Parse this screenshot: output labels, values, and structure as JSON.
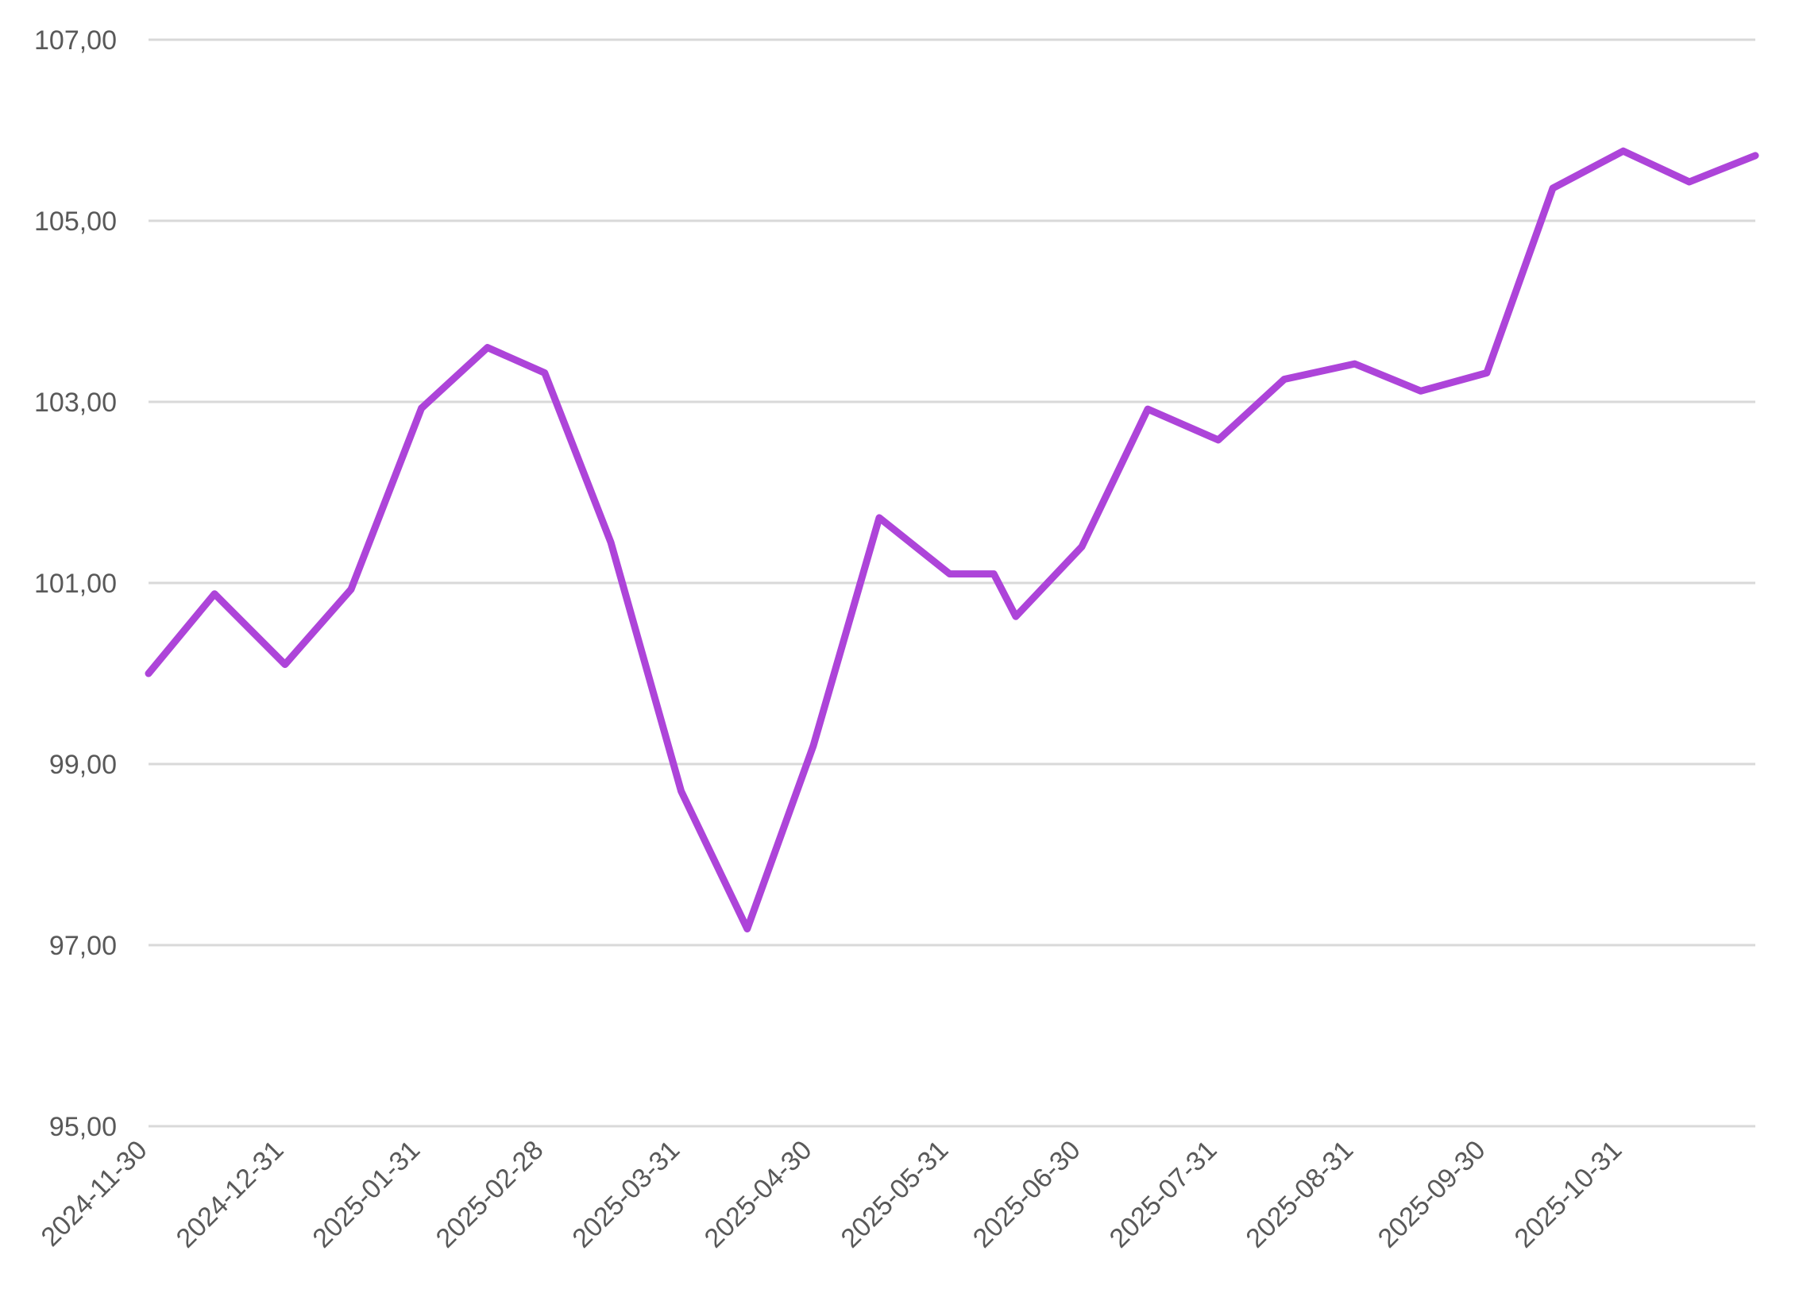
{
  "chart_data": {
    "type": "line",
    "title": "",
    "xlabel": "",
    "ylabel": "",
    "ylim": [
      95,
      107
    ],
    "y_ticks": [
      "95,00",
      "97,00",
      "99,00",
      "101,00",
      "103,00",
      "105,00",
      "107,00"
    ],
    "y_tick_values": [
      95,
      97,
      99,
      101,
      103,
      105,
      107
    ],
    "x_ticks": [
      "2024-11-30",
      "2024-12-31",
      "2025-01-31",
      "2025-02-28",
      "2025-03-31",
      "2025-04-30",
      "2025-05-31",
      "2025-06-30",
      "2025-07-31",
      "2025-08-31",
      "2025-09-30",
      "2025-10-31"
    ],
    "xlim": [
      "2024-11-30",
      "2025-11-30"
    ],
    "grid": true,
    "legend": "none",
    "series": [
      {
        "color": "#ad44d9",
        "points": [
          [
            "2024-11-30",
            100.0
          ],
          [
            "2024-12-15",
            100.88
          ],
          [
            "2024-12-31",
            100.1
          ],
          [
            "2025-01-15",
            100.93
          ],
          [
            "2025-01-31",
            102.93
          ],
          [
            "2025-02-15",
            103.6
          ],
          [
            "2025-02-28",
            103.32
          ],
          [
            "2025-03-15",
            101.45
          ],
          [
            "2025-03-31",
            98.7
          ],
          [
            "2025-04-15",
            97.18
          ],
          [
            "2025-04-30",
            99.2
          ],
          [
            "2025-05-15",
            101.72
          ],
          [
            "2025-05-31",
            101.1
          ],
          [
            "2025-06-10",
            101.1
          ],
          [
            "2025-06-15",
            100.63
          ],
          [
            "2025-06-30",
            101.4
          ],
          [
            "2025-07-15",
            102.92
          ],
          [
            "2025-07-31",
            102.58
          ],
          [
            "2025-08-15",
            103.25
          ],
          [
            "2025-08-31",
            103.42
          ],
          [
            "2025-09-15",
            103.12
          ],
          [
            "2025-09-30",
            103.32
          ],
          [
            "2025-10-15",
            105.36
          ],
          [
            "2025-10-31",
            105.77
          ],
          [
            "2025-11-15",
            105.43
          ],
          [
            "2025-11-30",
            105.72
          ]
        ]
      }
    ]
  }
}
